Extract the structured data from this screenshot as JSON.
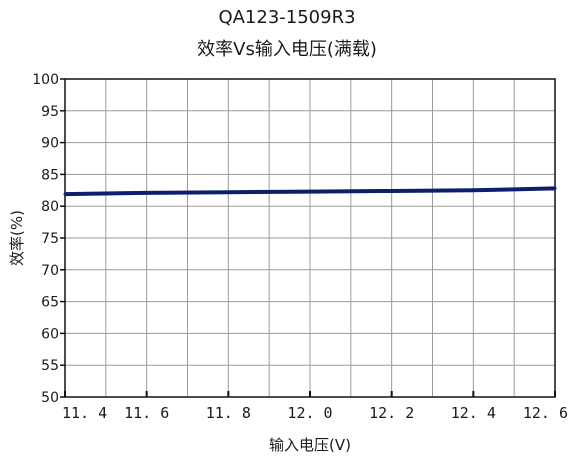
{
  "chart_data": {
    "type": "line",
    "title": "QA123-1509R3",
    "subtitle": "效率Vs输入电压(满载)",
    "xlabel": "输入电压(V)",
    "ylabel": "效率(%)",
    "xlim": [
      11.4,
      12.6
    ],
    "ylim": [
      50,
      100
    ],
    "x_ticks": [
      11.4,
      11.6,
      11.8,
      12.0,
      12.2,
      12.4,
      12.6
    ],
    "x_tick_labels": [
      "11. 4",
      "11. 6",
      "11. 8",
      "12. 0",
      "12. 2",
      "12. 4",
      "12. 6"
    ],
    "y_ticks": [
      50,
      55,
      60,
      65,
      70,
      75,
      80,
      85,
      90,
      95,
      100
    ],
    "y_tick_labels": [
      "50",
      "55",
      "60",
      "65",
      "70",
      "75",
      "80",
      "85",
      "90",
      "95",
      "100"
    ],
    "grid": true,
    "series": [
      {
        "x": [
          11.4,
          11.6,
          11.8,
          12.0,
          12.2,
          12.4,
          12.6
        ],
        "values": [
          81.9,
          82.1,
          82.2,
          82.3,
          82.4,
          82.5,
          82.8
        ],
        "color": "#0b1f6b"
      }
    ]
  }
}
